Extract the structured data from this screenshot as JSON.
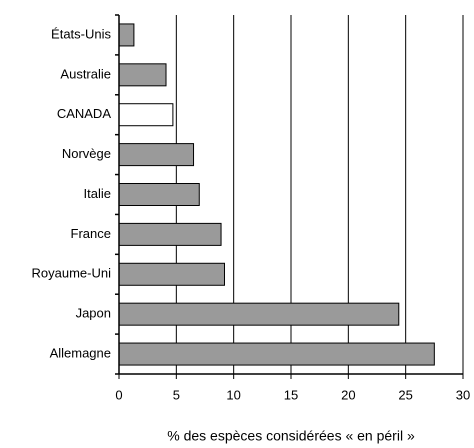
{
  "chart_data": {
    "type": "hbar",
    "categories": [
      "États-Unis",
      "Australie",
      "CANADA",
      "Norvège",
      "Italie",
      "France",
      "Royaume-Uni",
      "Japon",
      "Allemagne"
    ],
    "values": [
      1.3,
      4.1,
      4.7,
      6.5,
      7.0,
      8.9,
      9.2,
      24.4,
      27.5
    ],
    "colors": [
      "#9a9a9a",
      "#9a9a9a",
      "#ffffff",
      "#9a9a9a",
      "#9a9a9a",
      "#9a9a9a",
      "#9a9a9a",
      "#9a9a9a",
      "#9a9a9a"
    ],
    "xlabel": "% des espèces considérées « en péril »",
    "xlim": [
      0,
      30
    ],
    "xticks": [
      0,
      5,
      10,
      15,
      20,
      25,
      30
    ],
    "grid": true
  }
}
